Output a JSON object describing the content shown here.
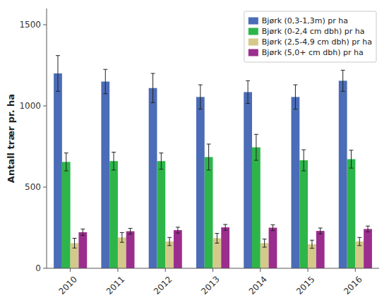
{
  "chart_data": {
    "type": "bar",
    "ylabel": "Antall trær pr. ha",
    "categories": [
      "2010",
      "2011",
      "2012",
      "2013",
      "2014",
      "2015",
      "2016"
    ],
    "series": [
      {
        "name": "Bjørk (0,3-1,3m) pr ha",
        "color": "#4B6CB7",
        "values": [
          1200,
          1150,
          1110,
          1055,
          1085,
          1055,
          1155
        ],
        "errors": [
          110,
          75,
          90,
          75,
          70,
          75,
          65
        ]
      },
      {
        "name": "Bjørk (0-2,4 cm dbh) pr ha",
        "color": "#2DB54A",
        "values": [
          655,
          660,
          660,
          685,
          745,
          665,
          672
        ],
        "errors": [
          55,
          55,
          50,
          80,
          80,
          65,
          55
        ]
      },
      {
        "name": "Bjørk (2,5-4,9 cm dbh) pr ha",
        "color": "#D4C98A",
        "values": [
          155,
          190,
          165,
          185,
          155,
          148,
          165
        ],
        "errors": [
          30,
          30,
          25,
          30,
          25,
          25,
          25
        ]
      },
      {
        "name": "Bjørk (5,0+ cm dbh) pr ha",
        "color": "#9B2D8E",
        "values": [
          222,
          228,
          235,
          252,
          250,
          230,
          242
        ],
        "errors": [
          20,
          18,
          18,
          18,
          18,
          18,
          18
        ]
      }
    ],
    "ylim": [
      0,
      1600
    ],
    "yticks": [
      0,
      500,
      1000,
      1500
    ],
    "grid": false,
    "legend": "upper right"
  }
}
